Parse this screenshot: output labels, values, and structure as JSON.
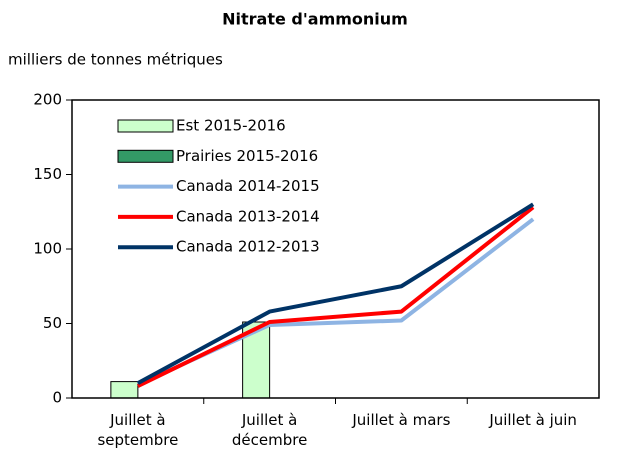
{
  "chart_data": {
    "type": "bar",
    "title": "Nitrate d'ammonium",
    "y_label": "milliers de tonnes métriques",
    "categories": [
      "Juillet à septembre",
      "Juillet à décembre",
      "Juillet à mars",
      "Juillet à juin"
    ],
    "ylim": [
      0,
      200
    ],
    "yticks": [
      0,
      50,
      100,
      150,
      200
    ],
    "grid": false,
    "legend": "upper left",
    "series": [
      {
        "name": "Est 2015-2016",
        "type": "bar",
        "color": "#ccffcc",
        "values": [
          11,
          51,
          null,
          null
        ]
      },
      {
        "name": "Prairies 2015-2016",
        "type": "bar",
        "color": "#339966",
        "values": [
          null,
          null,
          null,
          null
        ]
      },
      {
        "name": "Canada 2014-2015",
        "type": "line",
        "color": "#8eb4e3",
        "values": [
          9,
          49,
          52,
          120
        ]
      },
      {
        "name": "Canada 2013-2014",
        "type": "line",
        "color": "#ff0000",
        "values": [
          8,
          51,
          58,
          128
        ]
      },
      {
        "name": "Canada 2012-2013",
        "type": "line",
        "color": "#003366",
        "values": [
          10,
          58,
          75,
          130
        ]
      }
    ]
  }
}
